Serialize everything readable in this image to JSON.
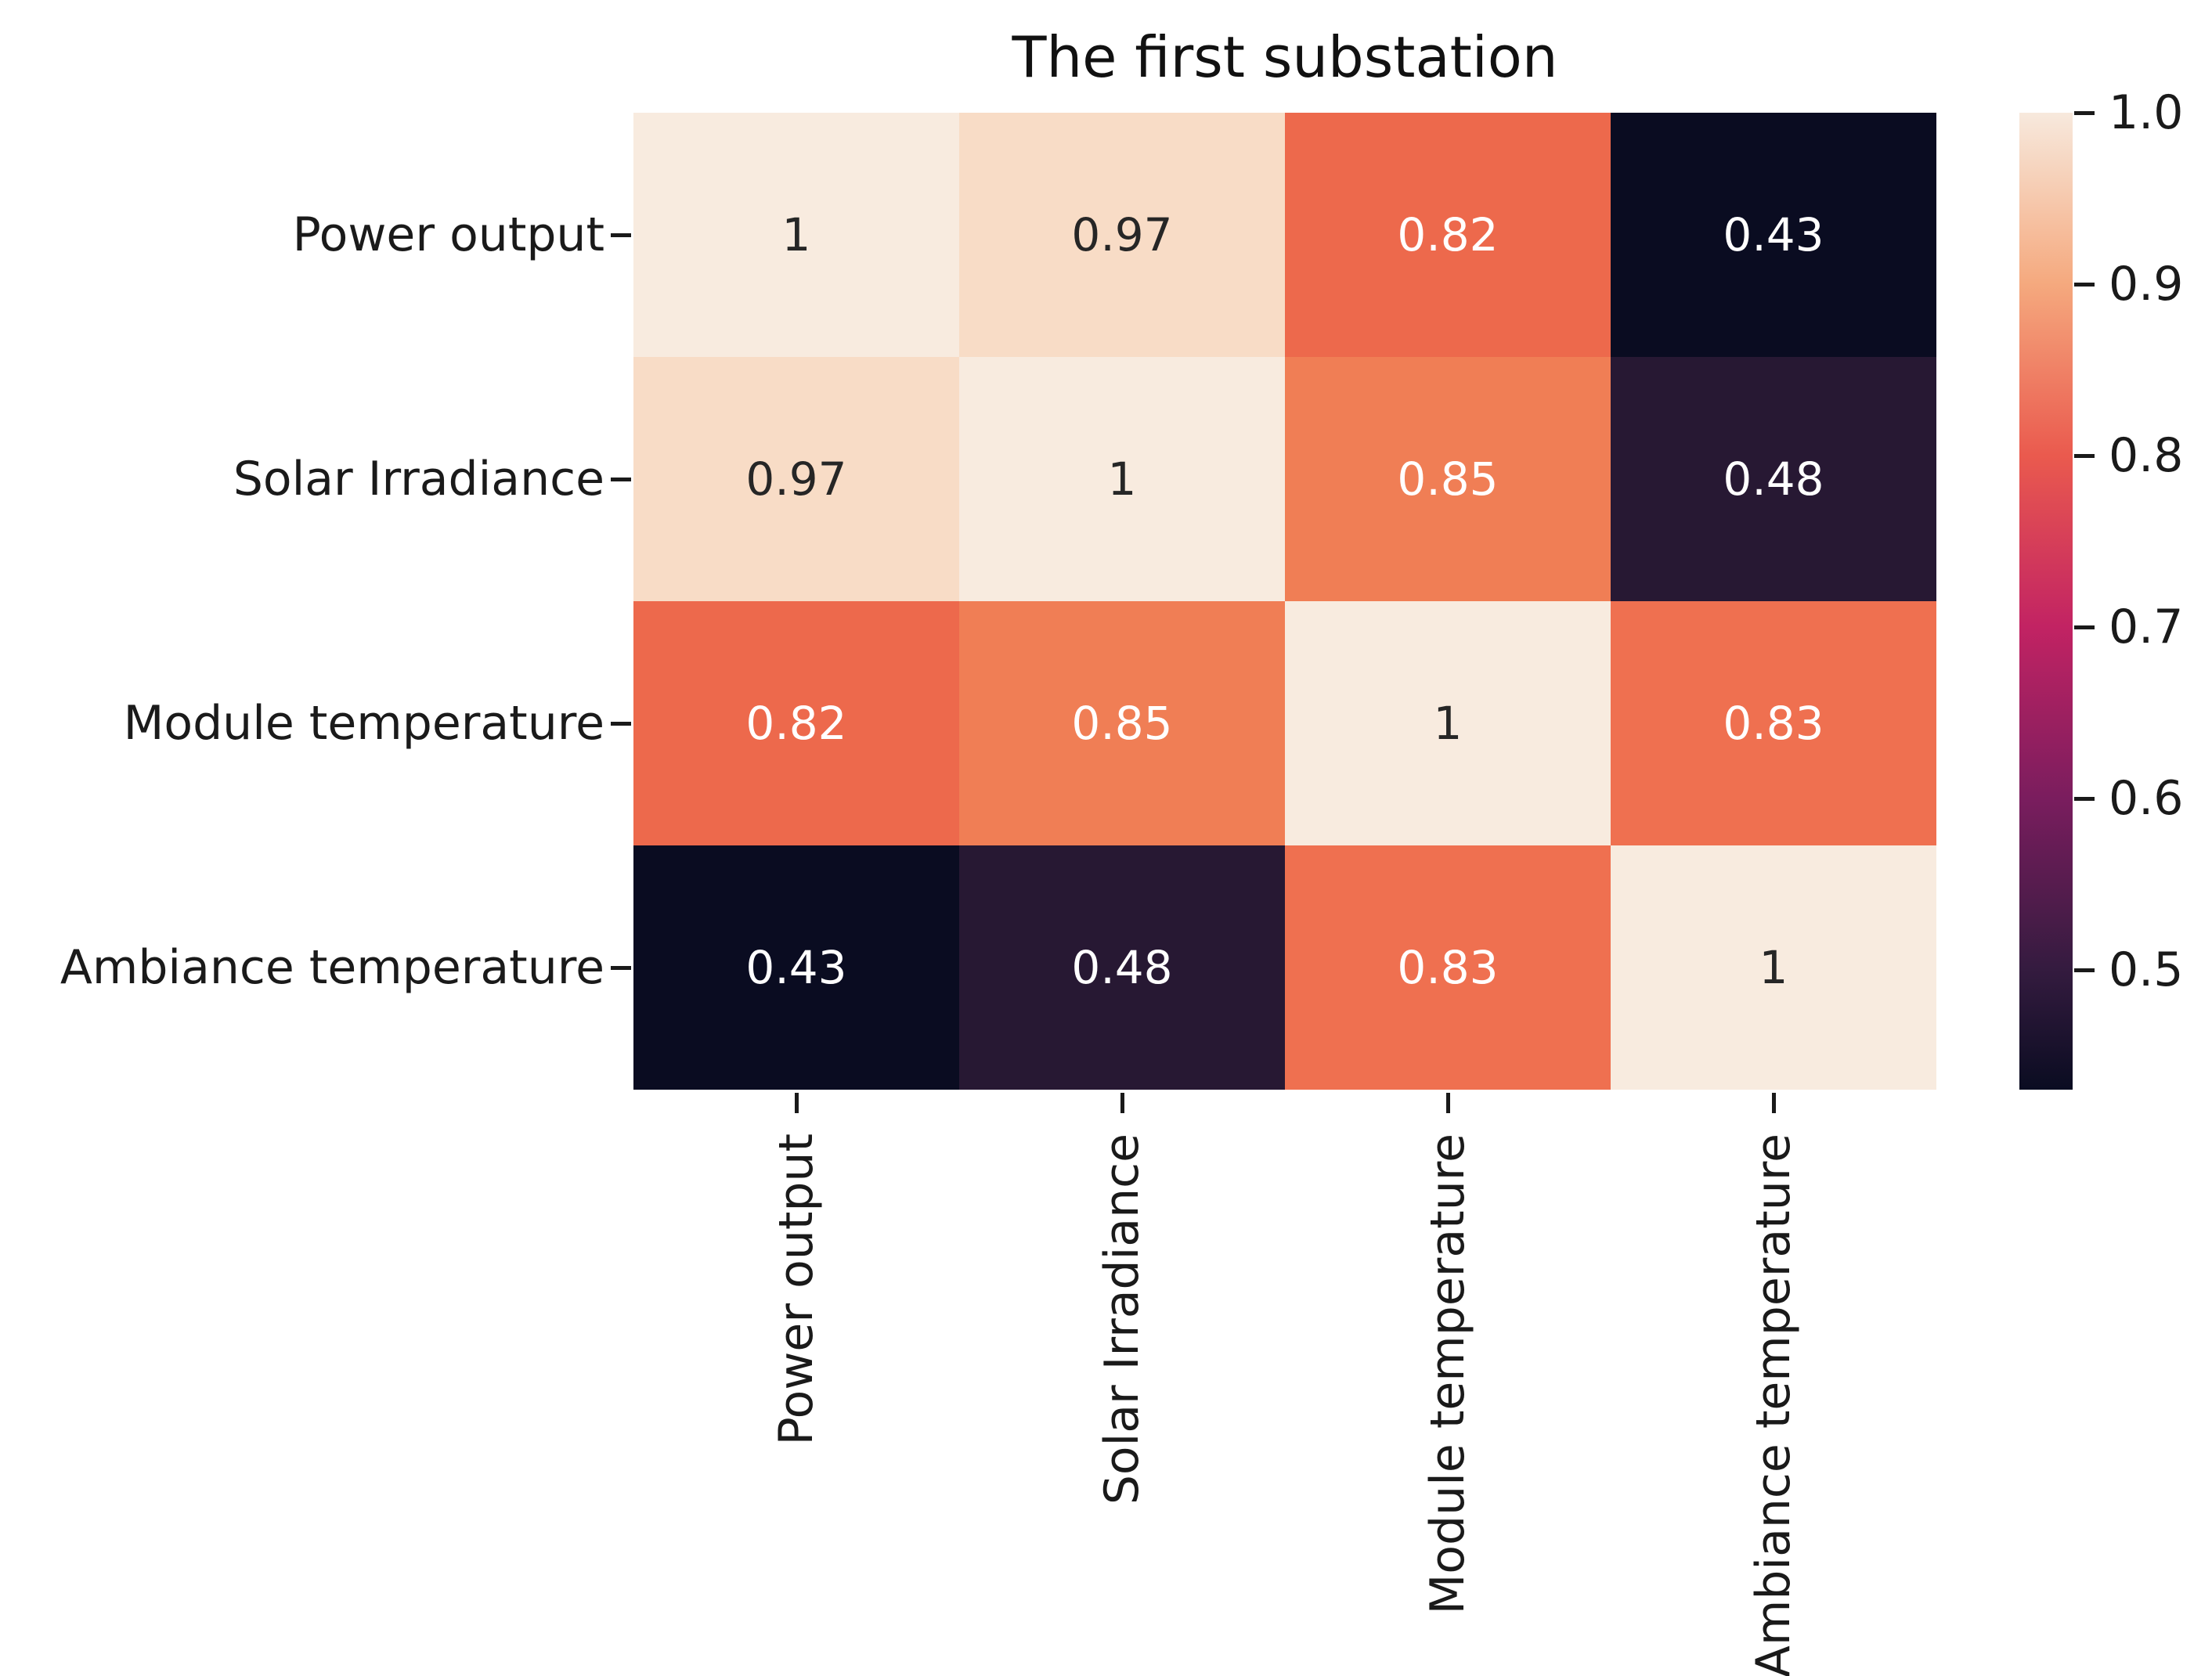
{
  "chart_data": {
    "type": "heatmap",
    "title": "The first substation",
    "categories": [
      "Power output",
      "Solar Irradiance",
      "Module temperature",
      "Ambiance temperature"
    ],
    "matrix": [
      [
        1,
        0.97,
        0.82,
        0.43
      ],
      [
        0.97,
        1,
        0.85,
        0.48
      ],
      [
        0.82,
        0.85,
        1,
        0.83
      ],
      [
        0.43,
        0.48,
        0.83,
        1
      ]
    ],
    "matrix_display": [
      [
        "1",
        "0.97",
        "0.82",
        "0.43"
      ],
      [
        "0.97",
        "1",
        "0.85",
        "0.48"
      ],
      [
        "0.82",
        "0.85",
        "1",
        "0.83"
      ],
      [
        "0.43",
        "0.48",
        "0.83",
        "1"
      ]
    ],
    "vmin": 0.43,
    "vmax": 1.0,
    "colormap": "rocket",
    "grid": false,
    "legend_position": "colorbar-right",
    "cell_colors": {
      "1": "#f8ebdf",
      "0.97": "#f8dcc6",
      "0.85": "#f07e55",
      "0.83": "#ef7050",
      "0.82": "#ed694c",
      "0.48": "#271833",
      "0.43": "#0a0c21"
    },
    "annotation_text_colors": {
      "on_light": "#262626",
      "on_dark": "#ffffff"
    },
    "colorbar": {
      "tick_labels": [
        "1.0",
        "0.9",
        "0.8",
        "0.7",
        "0.6",
        "0.5"
      ],
      "tick_values": [
        1.0,
        0.9,
        0.8,
        0.7,
        0.6,
        0.5
      ],
      "gradient": [
        {
          "pos": 0,
          "color": "#f7e9dd"
        },
        {
          "pos": 17.5,
          "color": "#f5a97e"
        },
        {
          "pos": 35.1,
          "color": "#ea5a4e"
        },
        {
          "pos": 52.6,
          "color": "#c22363"
        },
        {
          "pos": 70.2,
          "color": "#7a1d5e"
        },
        {
          "pos": 87.7,
          "color": "#341b3f"
        },
        {
          "pos": 100,
          "color": "#0a0c21"
        }
      ]
    }
  }
}
